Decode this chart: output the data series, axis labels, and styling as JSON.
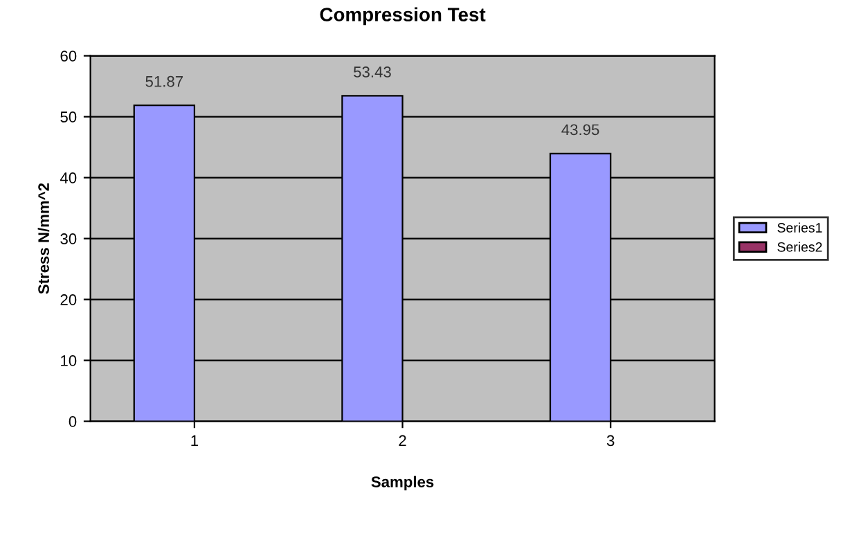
{
  "chart_data": {
    "type": "bar",
    "title": "Compression Test",
    "xlabel": "Samples",
    "ylabel": "Stress N/mm^2",
    "categories": [
      "1",
      "2",
      "3"
    ],
    "series": [
      {
        "name": "Series1",
        "color": "#9999ff",
        "values": [
          51.87,
          53.43,
          43.95
        ],
        "value_labels": [
          "51.87",
          "53.43",
          "43.95"
        ]
      },
      {
        "name": "Series2",
        "color": "#993366",
        "values": [
          null,
          null,
          null
        ]
      }
    ],
    "ylim": [
      0,
      60
    ],
    "yticks": [
      0,
      10,
      20,
      30,
      40,
      50,
      60
    ],
    "grid": "y",
    "legend": "right"
  }
}
